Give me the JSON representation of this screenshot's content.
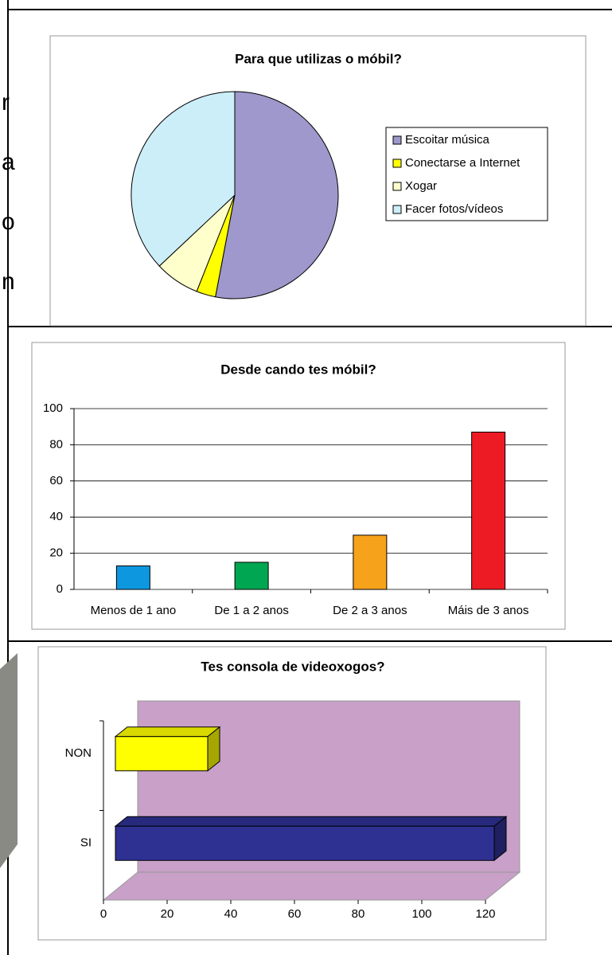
{
  "side_text": [
    "r",
    "a",
    "o",
    "n"
  ],
  "chart_data": [
    {
      "type": "pie",
      "title": "Para que utilizas o móbil?",
      "categories": [
        "Escoitar música",
        "Conectarse a Internet",
        "Xogar",
        "Facer fotos/vídeos"
      ],
      "values": [
        53,
        3,
        7,
        37
      ],
      "colors": [
        "#9e98cc",
        "#ffff00",
        "#ffffcc",
        "#cceef9"
      ]
    },
    {
      "type": "bar",
      "title": "Desde cando tes móbil?",
      "categories": [
        "Menos de 1 ano",
        "De 1 a 2 anos",
        "De 2 a 3 anos",
        "Máis de 3 anos"
      ],
      "values": [
        13,
        15,
        30,
        87
      ],
      "colors": [
        "#0d97de",
        "#00a651",
        "#f7a21b",
        "#ed1c24"
      ],
      "ylim": [
        0,
        100
      ],
      "yticks": [
        0,
        20,
        40,
        60,
        80,
        100
      ],
      "grid": true
    },
    {
      "type": "bar3d",
      "title": "Tes consola de videoxogos?",
      "categories": [
        "NON",
        "SI"
      ],
      "values": [
        29,
        119
      ],
      "colors": [
        "#ffff00",
        "#2e3192"
      ],
      "xlim": [
        0,
        120
      ],
      "xticks": [
        0,
        20,
        40,
        60,
        80,
        100,
        120
      ]
    }
  ]
}
